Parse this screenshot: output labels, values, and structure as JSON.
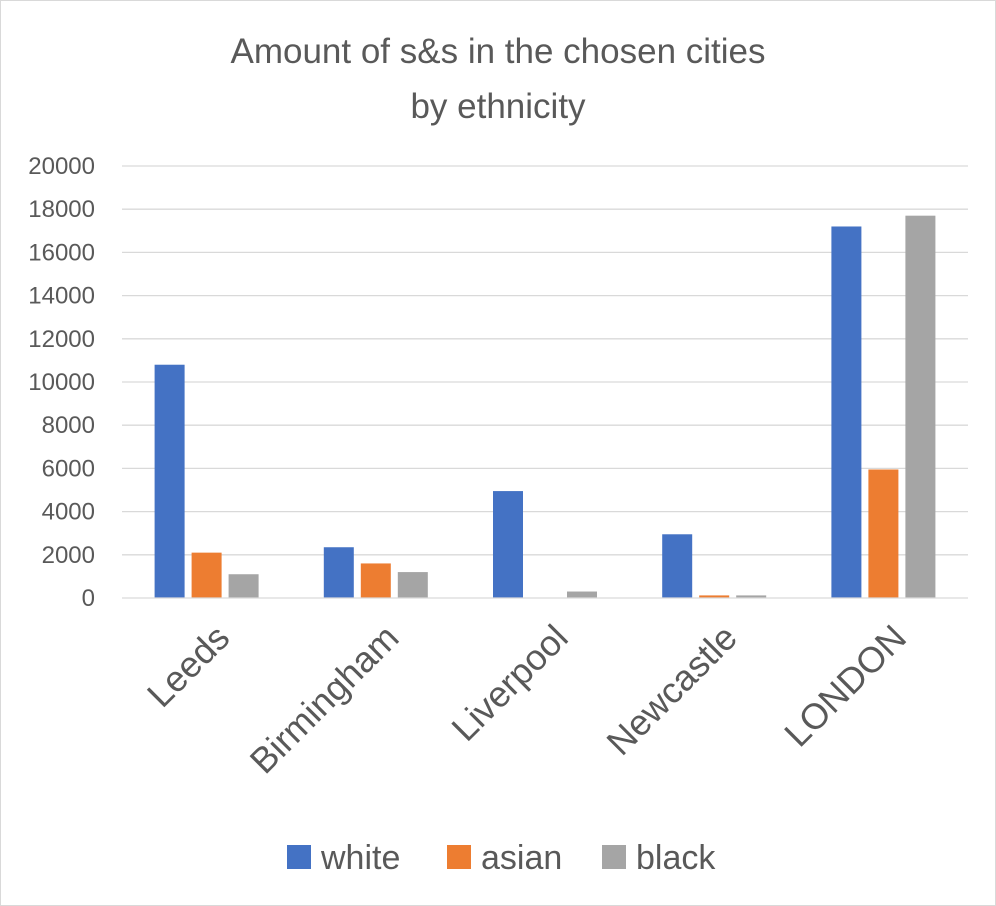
{
  "chart_data": {
    "type": "bar",
    "title": "Amount of s&s in the chosen cities by ethnicity",
    "title_lines": [
      "Amount of s&s in the chosen cities",
      "by ethnicity"
    ],
    "categories": [
      "Leeds",
      "Birmingham",
      "Liverpool",
      "Newcastle",
      "LONDON"
    ],
    "series": [
      {
        "name": "white",
        "color": "#4472C4",
        "values": [
          10800,
          2350,
          4950,
          2950,
          17200
        ]
      },
      {
        "name": "asian",
        "color": "#ED7D31",
        "values": [
          2100,
          1600,
          0,
          120,
          5950
        ]
      },
      {
        "name": "black",
        "color": "#A5A5A5",
        "values": [
          1100,
          1200,
          300,
          120,
          17700
        ]
      }
    ],
    "ylim": [
      0,
      20000
    ],
    "yticks": [
      0,
      2000,
      4000,
      6000,
      8000,
      10000,
      12000,
      14000,
      16000,
      18000,
      20000
    ],
    "ytick_labels": [
      "0",
      "2000",
      "4000",
      "6000",
      "8000",
      "10000",
      "12000",
      "14000",
      "16000",
      "18000",
      "20000"
    ],
    "xlabel": "",
    "ylabel": "",
    "grid": true,
    "legend_position": "bottom"
  }
}
